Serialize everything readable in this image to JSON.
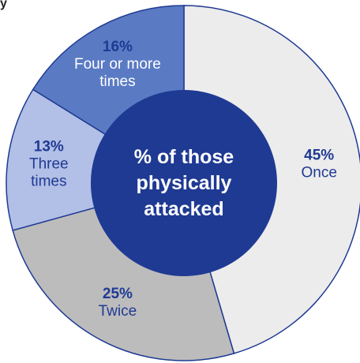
{
  "clipped_title_fragment": "y",
  "chart_data": {
    "type": "pie",
    "donut": true,
    "center_label_lines": [
      "% of those",
      "physically",
      "attacked"
    ],
    "slices": [
      {
        "percent_label": "45%",
        "label_lines": [
          "Once"
        ],
        "value": 45,
        "color": "#ececec",
        "label_color": "#1f3a93"
      },
      {
        "percent_label": "25%",
        "label_lines": [
          "Twice"
        ],
        "value": 25,
        "color": "#bcbcbc",
        "label_color": "#1f3a93"
      },
      {
        "percent_label": "13%",
        "label_lines": [
          "Three",
          "times"
        ],
        "value": 13,
        "color": "#b2bfe6",
        "label_color": "#1f3a93"
      },
      {
        "percent_label": "16%",
        "label_lines": [
          "Four or more",
          "times"
        ],
        "value": 16,
        "color": "#5a7bc4",
        "label_color": "#ffffff"
      }
    ],
    "center_color": "#1f3a93",
    "outline_color": "#1f3a93",
    "start_angle_deg": 0,
    "direction": "clockwise"
  }
}
